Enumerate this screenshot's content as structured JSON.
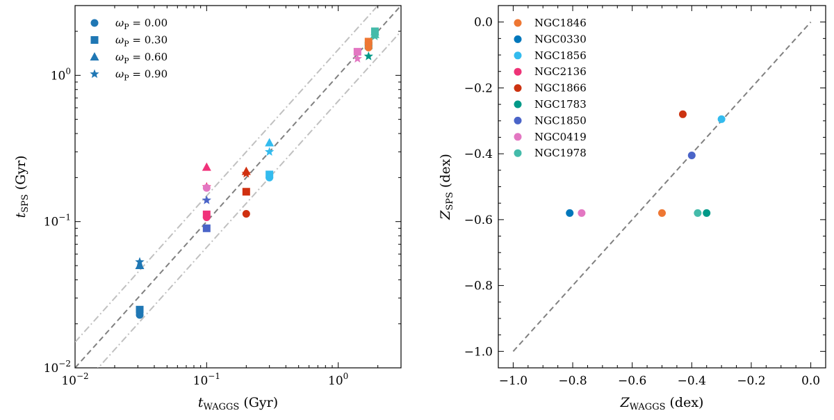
{
  "chart_data": [
    {
      "type": "scatter",
      "xscale": "log",
      "yscale": "log",
      "xlim": [
        0.01,
        3.0
      ],
      "ylim": [
        0.01,
        3.0
      ],
      "xlabel_main": "t",
      "xlabel_sub": "WAGGS",
      "xlabel_unit": " (Gyr)",
      "ylabel_main": "t",
      "ylabel_sub": "SPS",
      "ylabel_unit": " (Gyr)",
      "x_ticks": [
        {
          "v": 0.01,
          "base": "10",
          "exp": "−2"
        },
        {
          "v": 0.1,
          "base": "10",
          "exp": "−1"
        },
        {
          "v": 1,
          "base": "10",
          "exp": "0"
        }
      ],
      "y_ticks": [
        {
          "v": 0.01,
          "base": "10",
          "exp": "−2"
        },
        {
          "v": 0.1,
          "base": "10",
          "exp": "−1"
        },
        {
          "v": 1,
          "base": "10",
          "exp": "0"
        }
      ],
      "reference_lines": [
        {
          "style": "dashed",
          "factor": 1,
          "color": "#808080"
        },
        {
          "style": "dashdot",
          "factor": 1.5,
          "color": "#c0c0c0"
        },
        {
          "style": "dashdot",
          "factor": 0.6667,
          "color": "#c0c0c0"
        }
      ],
      "legend_location": "top-left",
      "legend": [
        {
          "marker": "circle",
          "label_sym": "ω",
          "label_sub": "P",
          "label_val": " = 0.00"
        },
        {
          "marker": "square",
          "label_sym": "ω",
          "label_sub": "P",
          "label_val": " = 0.30"
        },
        {
          "marker": "triangle",
          "label_sym": "ω",
          "label_sub": "P",
          "label_val": " = 0.60"
        },
        {
          "marker": "star",
          "label_sym": "ω",
          "label_sub": "P",
          "label_val": " = 0.90"
        }
      ],
      "legend_color": "#1f77b4",
      "points": [
        {
          "x": 0.031,
          "y": 0.023,
          "marker": "circle",
          "color": "#1f77b4"
        },
        {
          "x": 0.031,
          "y": 0.025,
          "marker": "square",
          "color": "#1f77b4"
        },
        {
          "x": 0.031,
          "y": 0.05,
          "marker": "triangle",
          "color": "#1f77b4"
        },
        {
          "x": 0.031,
          "y": 0.053,
          "marker": "star",
          "color": "#1f77b4"
        },
        {
          "x": 0.1,
          "y": 0.09,
          "marker": "square",
          "color": "#4a64c8"
        },
        {
          "x": 0.1,
          "y": 0.14,
          "marker": "star",
          "color": "#4a64c8"
        },
        {
          "x": 0.1,
          "y": 0.107,
          "marker": "circle",
          "color": "#f0327a"
        },
        {
          "x": 0.1,
          "y": 0.112,
          "marker": "square",
          "color": "#f0327a"
        },
        {
          "x": 0.1,
          "y": 0.173,
          "marker": "star",
          "color": "#f0327a"
        },
        {
          "x": 0.1,
          "y": 0.235,
          "marker": "triangle",
          "color": "#f0327a"
        },
        {
          "x": 0.1,
          "y": 0.17,
          "marker": "circle",
          "color": "#e377c2"
        },
        {
          "x": 0.2,
          "y": 0.113,
          "marker": "circle",
          "color": "#d03010"
        },
        {
          "x": 0.2,
          "y": 0.16,
          "marker": "square",
          "color": "#d03010"
        },
        {
          "x": 0.2,
          "y": 0.213,
          "marker": "star",
          "color": "#d03010"
        },
        {
          "x": 0.2,
          "y": 0.22,
          "marker": "triangle",
          "color": "#d03010"
        },
        {
          "x": 0.3,
          "y": 0.2,
          "marker": "circle",
          "color": "#33bbee"
        },
        {
          "x": 0.3,
          "y": 0.21,
          "marker": "square",
          "color": "#33bbee"
        },
        {
          "x": 0.3,
          "y": 0.345,
          "marker": "triangle",
          "color": "#33bbee"
        },
        {
          "x": 0.3,
          "y": 0.3,
          "marker": "star",
          "color": "#33bbee"
        },
        {
          "x": 1.4,
          "y": 1.3,
          "marker": "star",
          "color": "#e377c2"
        },
        {
          "x": 1.4,
          "y": 1.45,
          "marker": "square",
          "color": "#e377c2"
        },
        {
          "x": 1.7,
          "y": 1.6,
          "marker": "square",
          "color": "#009988"
        },
        {
          "x": 1.7,
          "y": 1.35,
          "marker": "star",
          "color": "#009988"
        },
        {
          "x": 1.7,
          "y": 1.7,
          "marker": "square",
          "color": "#ee7733"
        },
        {
          "x": 1.7,
          "y": 1.55,
          "marker": "circle",
          "color": "#ee7733"
        },
        {
          "x": 1.9,
          "y": 2.0,
          "marker": "square",
          "color": "#44bbaa"
        },
        {
          "x": 1.9,
          "y": 1.85,
          "marker": "star",
          "color": "#44bbaa"
        },
        {
          "x": 1.9,
          "y": 1.9,
          "marker": "triangle",
          "color": "#44bbaa"
        }
      ]
    },
    {
      "type": "scatter",
      "xscale": "linear",
      "yscale": "linear",
      "xlim": [
        -1.05,
        0.05
      ],
      "ylim": [
        -1.05,
        0.05
      ],
      "xlabel_main": "Z",
      "xlabel_sub": "WAGGS",
      "xlabel_unit": " (dex)",
      "ylabel_main": "Z",
      "ylabel_sub": "SPS",
      "ylabel_unit": " (dex)",
      "x_ticks": [
        {
          "v": -1.0,
          "label": "−1.0"
        },
        {
          "v": -0.8,
          "label": "−0.8"
        },
        {
          "v": -0.6,
          "label": "−0.6"
        },
        {
          "v": -0.4,
          "label": "−0.4"
        },
        {
          "v": -0.2,
          "label": "−0.2"
        },
        {
          "v": 0.0,
          "label": "0.0"
        }
      ],
      "y_ticks": [
        {
          "v": 0.0,
          "label": "0.0"
        },
        {
          "v": -0.2,
          "label": "−0.2"
        },
        {
          "v": -0.4,
          "label": "−0.4"
        },
        {
          "v": -0.6,
          "label": "−0.6"
        },
        {
          "v": -0.8,
          "label": "−0.8"
        },
        {
          "v": -1.0,
          "label": "−1.0"
        }
      ],
      "reference_lines": [
        {
          "style": "dashed",
          "from": [
            -1.0,
            -1.0
          ],
          "to": [
            0.0,
            0.0
          ],
          "color": "#808080"
        }
      ],
      "legend_location": "top-left",
      "series": [
        {
          "name": "NGC1846",
          "color": "#ee7733",
          "x": -0.5,
          "y": -0.58
        },
        {
          "name": "NGC0330",
          "color": "#0077bb",
          "x": -0.81,
          "y": -0.58
        },
        {
          "name": "NGC1856",
          "color": "#33bbee",
          "x": -0.3,
          "y": -0.295
        },
        {
          "name": "NGC2136",
          "color": "#ee3377",
          "x": null,
          "y": null
        },
        {
          "name": "NGC1866",
          "color": "#cc3311",
          "x": -0.43,
          "y": -0.28
        },
        {
          "name": "NGC1783",
          "color": "#009988",
          "x": -0.35,
          "y": -0.58
        },
        {
          "name": "NGC1850",
          "color": "#4a64c8",
          "x": -0.4,
          "y": -0.405
        },
        {
          "name": "NGC0419",
          "color": "#e377c2",
          "x": -0.77,
          "y": -0.58
        },
        {
          "name": "NGC1978",
          "color": "#44bbaa",
          "x": -0.38,
          "y": -0.58
        }
      ]
    }
  ]
}
